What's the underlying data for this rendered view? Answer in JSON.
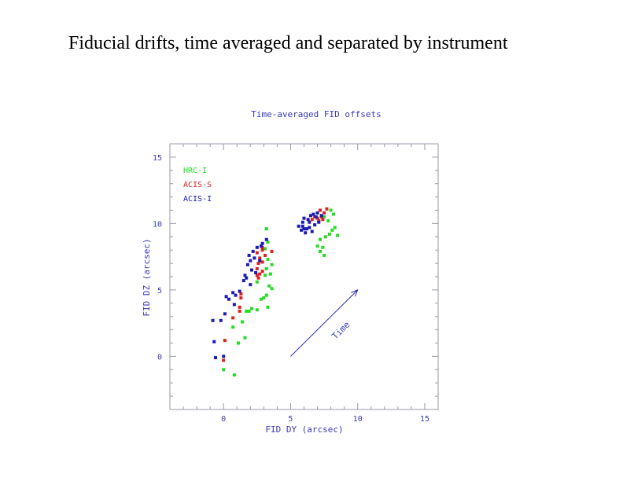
{
  "slide": {
    "title": "Fiducial drifts, time averaged and separated by instrument"
  },
  "chart_data": {
    "type": "scatter",
    "title": "Time-averaged FID offsets",
    "xlabel": "FID DY (arcsec)",
    "ylabel": "FID DZ (arcsec)",
    "xlim": [
      -4,
      16
    ],
    "ylim": [
      -4,
      16
    ],
    "xticks": [
      0,
      5,
      10,
      15
    ],
    "yticks": [
      0,
      5,
      10,
      15
    ],
    "grid": false,
    "legend_position": "top-left",
    "annotation": {
      "text": "Time",
      "from": [
        5,
        0
      ],
      "to": [
        10,
        5
      ]
    },
    "series": [
      {
        "name": "HRC-I",
        "color": "#22dd22",
        "points": [
          [
            0,
            -1
          ],
          [
            0.8,
            -1.4
          ],
          [
            1.1,
            1
          ],
          [
            1.6,
            1.4
          ],
          [
            0.7,
            2.2
          ],
          [
            1.4,
            2.6
          ],
          [
            1.7,
            3.4
          ],
          [
            1.9,
            3.4
          ],
          [
            2.5,
            3.5
          ],
          [
            2.1,
            3.6
          ],
          [
            3.3,
            3.7
          ],
          [
            2.8,
            4.3
          ],
          [
            3,
            4.4
          ],
          [
            3.2,
            4.6
          ],
          [
            3.6,
            5.1
          ],
          [
            3.4,
            5.3
          ],
          [
            2.5,
            5.6
          ],
          [
            3.1,
            6.1
          ],
          [
            3.5,
            6.2
          ],
          [
            3.2,
            6.6
          ],
          [
            3.6,
            6.9
          ],
          [
            3.3,
            7.3
          ],
          [
            3.1,
            8.1
          ],
          [
            3.3,
            8.6
          ],
          [
            3.2,
            9.6
          ],
          [
            7.2,
            7.9
          ],
          [
            7.5,
            7.6
          ],
          [
            7,
            8.3
          ],
          [
            7.4,
            8.2
          ],
          [
            7.2,
            8.8
          ],
          [
            7.6,
            9
          ],
          [
            7.9,
            9.2
          ],
          [
            8.1,
            9.5
          ],
          [
            8.3,
            9.7
          ],
          [
            8.5,
            9.1
          ],
          [
            7.8,
            10.2
          ],
          [
            8.2,
            10.7
          ],
          [
            7.5,
            10.5
          ],
          [
            8,
            11
          ]
        ]
      },
      {
        "name": "ACIS-S",
        "color": "#dd2222",
        "points": [
          [
            0,
            -0.3
          ],
          [
            0.1,
            1.2
          ],
          [
            0.7,
            2.9
          ],
          [
            1.2,
            3.4
          ],
          [
            1.2,
            3.7
          ],
          [
            1.3,
            4.4
          ],
          [
            1.3,
            4.7
          ],
          [
            2.6,
            5.9
          ],
          [
            2.5,
            6.1
          ],
          [
            2.7,
            6.2
          ],
          [
            2.9,
            6.4
          ],
          [
            2.5,
            6.6
          ],
          [
            2.6,
            7
          ],
          [
            2.9,
            7.1
          ],
          [
            2.7,
            7.4
          ],
          [
            3.1,
            7.6
          ],
          [
            2.5,
            7.8
          ],
          [
            2.9,
            8
          ],
          [
            3.6,
            7.9
          ],
          [
            2.9,
            8.2
          ],
          [
            7.1,
            10.2
          ],
          [
            7.3,
            10.5
          ],
          [
            7.5,
            10.8
          ],
          [
            7.7,
            11.1
          ],
          [
            7.2,
            11
          ],
          [
            6.8,
            10.5
          ],
          [
            6.6,
            10.3
          ],
          [
            7,
            10.4
          ],
          [
            7.4,
            10.3
          ]
        ]
      },
      {
        "name": "ACIS-I",
        "color": "#1a1ab5",
        "points": [
          [
            -0.7,
            1.1
          ],
          [
            -0.6,
            -0.1
          ],
          [
            0,
            0
          ],
          [
            -0.8,
            2.7
          ],
          [
            -0.2,
            2.7
          ],
          [
            0.1,
            3.2
          ],
          [
            0.2,
            4.5
          ],
          [
            0.4,
            4.3
          ],
          [
            0.7,
            4.8
          ],
          [
            0.9,
            4.6
          ],
          [
            0.8,
            3.9
          ],
          [
            1.2,
            4.9
          ],
          [
            1.5,
            5.7
          ],
          [
            1.6,
            6.1
          ],
          [
            1.7,
            5.9
          ],
          [
            2,
            5.4
          ],
          [
            2.1,
            6.5
          ],
          [
            2.4,
            6.3
          ],
          [
            1.8,
            6.9
          ],
          [
            2,
            7.2
          ],
          [
            2.3,
            7.4
          ],
          [
            1.9,
            7.6
          ],
          [
            2.2,
            7.9
          ],
          [
            2.5,
            8.2
          ],
          [
            2.8,
            8.3
          ],
          [
            2.7,
            7.2
          ],
          [
            2.9,
            8.5
          ],
          [
            3.2,
            8.8
          ],
          [
            6,
            10.4
          ],
          [
            6.3,
            10.3
          ],
          [
            6.5,
            10.6
          ],
          [
            6.7,
            10.7
          ],
          [
            7,
            10.8
          ],
          [
            6.9,
            10.5
          ],
          [
            5.6,
            9.8
          ],
          [
            5.9,
            9.8
          ],
          [
            6.2,
            9.6
          ],
          [
            6.4,
            9.7
          ],
          [
            6.8,
            9.9
          ],
          [
            6.4,
            10.1
          ],
          [
            5.9,
            10.1
          ],
          [
            6.1,
            9.3
          ],
          [
            5.8,
            9.5
          ],
          [
            6.6,
            9.4
          ],
          [
            7.1,
            10.1
          ],
          [
            7.3,
            10.6
          ],
          [
            6,
            9.6
          ]
        ]
      }
    ]
  }
}
